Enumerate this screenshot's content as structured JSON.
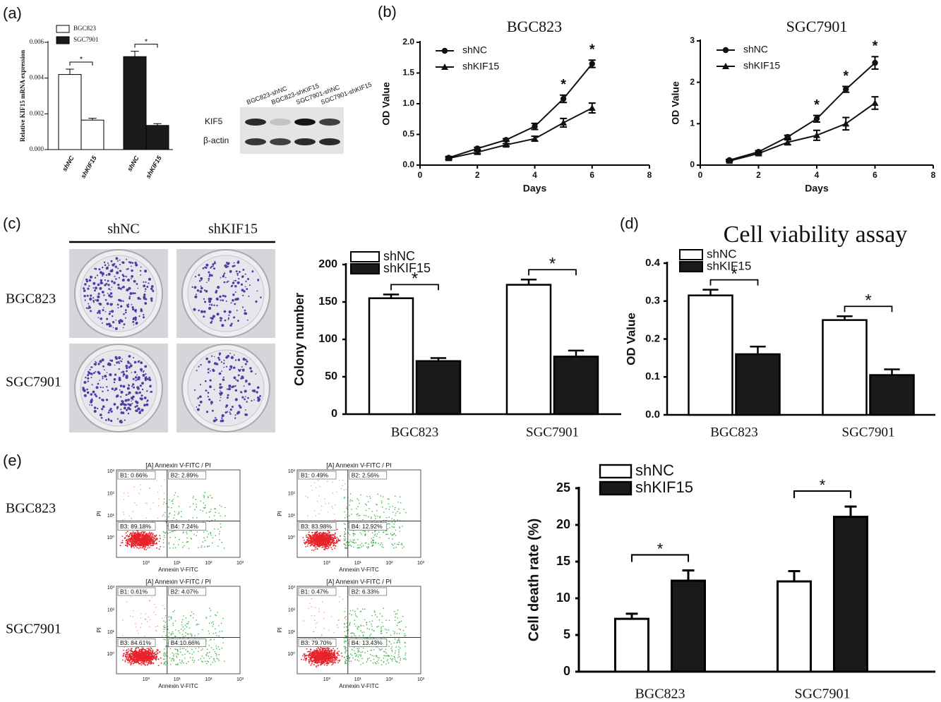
{
  "panel_labels": [
    "(a)",
    "(b)",
    "(c)",
    "(d)",
    "(e)"
  ],
  "western_blot": {
    "columns": [
      "BGC823-shNC",
      "BGC823-shKIF15",
      "SGC7901-shNC",
      "SGC7901-shKIF15"
    ],
    "rows": [
      "KIF5",
      "β-actin"
    ]
  },
  "colony_assay": {
    "columns": [
      "shNC",
      "shKIF15"
    ],
    "rows": [
      "BGC823",
      "SGC7901"
    ]
  },
  "flow_cytometry": {
    "rows": [
      "BGC823",
      "SGC7901"
    ],
    "title": "[A] Annexin V-FITC / PI",
    "xlabel": "Annexin V-FITC",
    "ylabel": "PI",
    "ticks": [
      "10⁰",
      "10¹",
      "10²",
      "10³"
    ],
    "plots": [
      {
        "quadrants": [
          "B1: 0.66%",
          "B2: 2.89%",
          "B3: 89.18%",
          "B4: 7.24%"
        ]
      },
      {
        "quadrants": [
          "B1: 0.49%",
          "B2: 2.56%",
          "B3: 83.98%",
          "B4: 12.92%"
        ]
      },
      {
        "quadrants": [
          "B1: 0.61%",
          "B2: 4.07%",
          "B3: 84.61%",
          "B4:10.66%"
        ]
      },
      {
        "quadrants": [
          "B1: 0.47%",
          "B2: 6.33%",
          "B3: 79.70%",
          "B4: 13.43%"
        ]
      }
    ]
  },
  "chart_data": [
    {
      "type": "bar",
      "ylabel": "Relative KIF15 mRNA expression",
      "categories": [
        "shNC",
        "shKIF15"
      ],
      "series": [
        {
          "name": "BGC823",
          "color": "#ffffff",
          "values": [
            0.0042,
            0.00165
          ],
          "errors": [
            0.0003,
            0.0001
          ]
        },
        {
          "name": "SGC7901",
          "color": "#1a1a1a",
          "values": [
            0.0052,
            0.00135
          ],
          "errors": [
            0.0003,
            0.0001
          ]
        }
      ],
      "ylim": [
        0,
        0.006
      ],
      "yticks": [
        {
          "value": 0,
          "label": "0.000"
        },
        {
          "value": 0.002,
          "label": "0.002"
        },
        {
          "value": 0.004,
          "label": "0.004"
        },
        {
          "value": 0.006,
          "label": "0.006"
        }
      ],
      "significance": [
        "*",
        "*"
      ]
    },
    {
      "type": "line",
      "title": "BGC823",
      "xlabel": "Days",
      "ylabel": "OD Value",
      "x": [
        1,
        2,
        3,
        4,
        5,
        6
      ],
      "series": [
        {
          "name": "shNC",
          "color": "#111111",
          "marker": "circle",
          "values": [
            0.12,
            0.27,
            0.41,
            0.63,
            1.08,
            1.65
          ],
          "errors": [
            0.02,
            0.02,
            0.02,
            0.05,
            0.06,
            0.06
          ]
        },
        {
          "name": "shKIF15",
          "color": "#111111",
          "marker": "triangle",
          "values": [
            0.11,
            0.21,
            0.33,
            0.43,
            0.69,
            0.93
          ],
          "errors": [
            0.02,
            0.02,
            0.02,
            0.04,
            0.07,
            0.08
          ]
        }
      ],
      "xlim": [
        0,
        8
      ],
      "xticks": [
        0,
        2,
        4,
        6,
        8
      ],
      "ylim": [
        0,
        2
      ],
      "yticks": [
        {
          "value": 0,
          "label": "0.0"
        },
        {
          "value": 0.5,
          "label": "0.5"
        },
        {
          "value": 1,
          "label": "1.0"
        },
        {
          "value": 1.5,
          "label": "1.5"
        },
        {
          "value": 2,
          "label": "2.0"
        }
      ],
      "annotations": [
        {
          "x": 5,
          "text": "*"
        },
        {
          "x": 6,
          "text": "*"
        }
      ]
    },
    {
      "type": "line",
      "title": "SGC7901",
      "xlabel": "Days",
      "ylabel": "OD Value",
      "x": [
        1,
        2,
        3,
        4,
        5,
        6
      ],
      "series": [
        {
          "name": "shNC",
          "color": "#111111",
          "marker": "circle",
          "values": [
            0.12,
            0.32,
            0.68,
            1.12,
            1.83,
            2.47
          ],
          "errors": [
            0.02,
            0.03,
            0.04,
            0.08,
            0.07,
            0.15
          ]
        },
        {
          "name": "shKIF15",
          "color": "#111111",
          "marker": "triangle",
          "values": [
            0.1,
            0.28,
            0.55,
            0.72,
            1.0,
            1.5
          ],
          "errors": [
            0.02,
            0.03,
            0.06,
            0.12,
            0.15,
            0.15
          ]
        }
      ],
      "xlim": [
        0,
        8
      ],
      "xticks": [
        0,
        2,
        4,
        6,
        8
      ],
      "ylim": [
        0,
        3
      ],
      "yticks": [
        0,
        1,
        2,
        3
      ],
      "annotations": [
        {
          "x": 4,
          "text": "*"
        },
        {
          "x": 5,
          "text": "*"
        },
        {
          "x": 6,
          "text": "*"
        }
      ]
    },
    {
      "type": "bar",
      "ylabel": "Colony number",
      "categories": [
        "BGC823",
        "SGC7901"
      ],
      "series": [
        {
          "name": "shNC",
          "color": "#ffffff",
          "values": [
            155,
            173
          ],
          "errors": [
            5,
            7
          ]
        },
        {
          "name": "shKIF15",
          "color": "#1a1a1a",
          "values": [
            71,
            77
          ],
          "errors": [
            4,
            8
          ]
        }
      ],
      "ylim": [
        0,
        200
      ],
      "yticks": [
        0,
        50,
        100,
        150,
        200
      ],
      "significance": [
        "*",
        "*"
      ]
    },
    {
      "type": "bar",
      "title": "Cell viability assay",
      "ylabel": "OD Value",
      "categories": [
        "BGC823",
        "SGC7901"
      ],
      "series": [
        {
          "name": "shNC",
          "color": "#ffffff",
          "values": [
            0.315,
            0.25
          ],
          "errors": [
            0.015,
            0.01
          ]
        },
        {
          "name": "shKIF15",
          "color": "#1a1a1a",
          "values": [
            0.16,
            0.105
          ],
          "errors": [
            0.02,
            0.015
          ]
        }
      ],
      "ylim": [
        0,
        0.4
      ],
      "yticks": [
        {
          "value": 0,
          "label": "0.0"
        },
        {
          "value": 0.1,
          "label": "0.1"
        },
        {
          "value": 0.2,
          "label": "0.2"
        },
        {
          "value": 0.3,
          "label": "0.3"
        },
        {
          "value": 0.4,
          "label": "0.4"
        }
      ],
      "significance": [
        "*",
        "*"
      ]
    },
    {
      "type": "bar",
      "ylabel": "Cell death rate (%)",
      "categories": [
        "BGC823",
        "SGC7901"
      ],
      "series": [
        {
          "name": "shNC",
          "color": "#ffffff",
          "values": [
            7.2,
            12.3
          ],
          "errors": [
            0.7,
            1.4
          ]
        },
        {
          "name": "shKIF15",
          "color": "#1a1a1a",
          "values": [
            12.4,
            21.1
          ],
          "errors": [
            1.4,
            1.4
          ]
        }
      ],
      "ylim": [
        0,
        25
      ],
      "yticks": [
        0,
        5,
        10,
        15,
        20,
        25
      ],
      "significance": [
        "*",
        "*"
      ]
    }
  ]
}
